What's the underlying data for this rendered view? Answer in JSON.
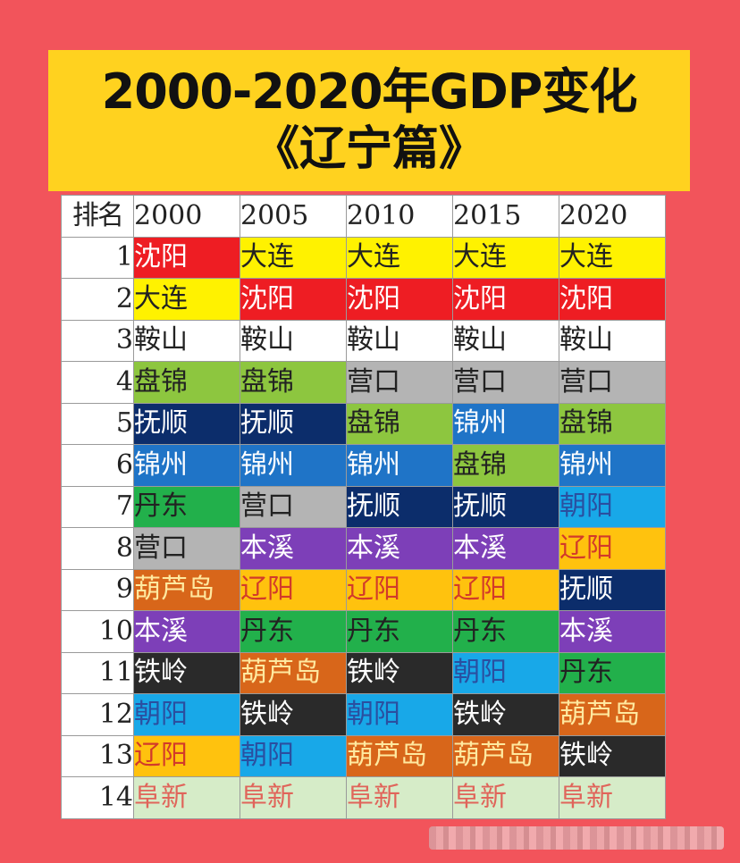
{
  "title": {
    "line1": "2000-2020年GDP变化",
    "line2": "《辽宁篇》"
  },
  "table": {
    "headers": [
      "排名",
      "2000",
      "2005",
      "2010",
      "2015",
      "2020"
    ],
    "city_colors": {
      "沈阳": {
        "bg": "#ee1d23",
        "fg": "#ffffff"
      },
      "大连": {
        "bg": "#fff200",
        "fg": "#222222"
      },
      "鞍山": {
        "bg": "#ffffff",
        "fg": "#222222"
      },
      "盘锦": {
        "bg": "#8dc63f",
        "fg": "#222222"
      },
      "营口": {
        "bg": "#b4b4b4",
        "fg": "#222222"
      },
      "抚顺": {
        "bg": "#0c2d6b",
        "fg": "#ffffff"
      },
      "锦州": {
        "bg": "#1f74c7",
        "fg": "#ffffff"
      },
      "丹东": {
        "bg": "#22b04b",
        "fg": "#222222"
      },
      "本溪": {
        "bg": "#7d3fb8",
        "fg": "#ffffff"
      },
      "葫芦岛": {
        "bg": "#d8661a",
        "fg": "#ffe9a0"
      },
      "铁岭": {
        "bg": "#2a2a2a",
        "fg": "#ffffff"
      },
      "朝阳": {
        "bg": "#18a8e8",
        "fg": "#2a4fa0"
      },
      "辽阳": {
        "bg": "#ffc20e",
        "fg": "#d23a2a"
      },
      "阜新": {
        "bg": "#d6ecc8",
        "fg": "#e0645a"
      }
    },
    "rows": [
      {
        "rank": "1",
        "cities": [
          "沈阳",
          "大连",
          "大连",
          "大连",
          "大连"
        ]
      },
      {
        "rank": "2",
        "cities": [
          "大连",
          "沈阳",
          "沈阳",
          "沈阳",
          "沈阳"
        ]
      },
      {
        "rank": "3",
        "cities": [
          "鞍山",
          "鞍山",
          "鞍山",
          "鞍山",
          "鞍山"
        ]
      },
      {
        "rank": "4",
        "cities": [
          "盘锦",
          "盘锦",
          "营口",
          "营口",
          "营口"
        ]
      },
      {
        "rank": "5",
        "cities": [
          "抚顺",
          "抚顺",
          "盘锦",
          "锦州",
          "盘锦"
        ]
      },
      {
        "rank": "6",
        "cities": [
          "锦州",
          "锦州",
          "锦州",
          "盘锦",
          "锦州"
        ]
      },
      {
        "rank": "7",
        "cities": [
          "丹东",
          "营口",
          "抚顺",
          "抚顺",
          "朝阳"
        ]
      },
      {
        "rank": "8",
        "cities": [
          "营口",
          "本溪",
          "本溪",
          "本溪",
          "辽阳"
        ]
      },
      {
        "rank": "9",
        "cities": [
          "葫芦岛",
          "辽阳",
          "辽阳",
          "辽阳",
          "抚顺"
        ]
      },
      {
        "rank": "10",
        "cities": [
          "本溪",
          "丹东",
          "丹东",
          "丹东",
          "本溪"
        ]
      },
      {
        "rank": "11",
        "cities": [
          "铁岭",
          "葫芦岛",
          "铁岭",
          "朝阳",
          "丹东"
        ]
      },
      {
        "rank": "12",
        "cities": [
          "朝阳",
          "铁岭",
          "朝阳",
          "铁岭",
          "葫芦岛"
        ]
      },
      {
        "rank": "13",
        "cities": [
          "辽阳",
          "朝阳",
          "葫芦岛",
          "葫芦岛",
          "铁岭"
        ]
      },
      {
        "rank": "14",
        "cities": [
          "阜新",
          "阜新",
          "阜新",
          "阜新",
          "阜新"
        ]
      }
    ]
  }
}
